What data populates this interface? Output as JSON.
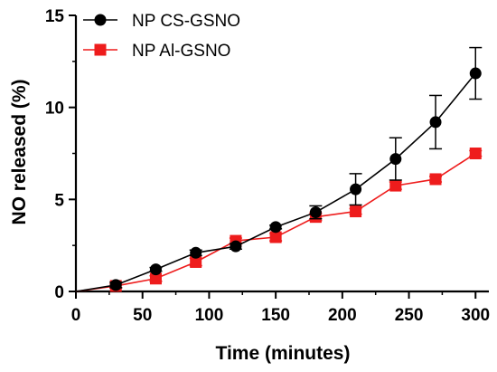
{
  "chart_data": {
    "type": "line",
    "title": "",
    "xlabel": "Time (minutes)",
    "ylabel": "NO released (%)",
    "xlim": [
      0,
      310
    ],
    "ylim": [
      0,
      15
    ],
    "x_ticks": [
      0,
      50,
      100,
      150,
      200,
      250,
      300
    ],
    "y_ticks": [
      0,
      5,
      10,
      15
    ],
    "grid": false,
    "legend_position": "top-left",
    "series": [
      {
        "name": "NP CS-GSNO",
        "marker": "circle",
        "color": "#000000",
        "x": [
          0,
          30,
          60,
          90,
          120,
          150,
          180,
          210,
          240,
          270,
          300
        ],
        "y": [
          0,
          0.35,
          1.2,
          2.1,
          2.45,
          3.5,
          4.3,
          5.55,
          7.2,
          9.2,
          11.85
        ],
        "error": [
          0,
          0.15,
          0.1,
          0.15,
          0.15,
          0.1,
          0.35,
          0.85,
          1.15,
          1.45,
          1.4
        ]
      },
      {
        "name": "NP Al-GSNO",
        "marker": "square",
        "color": "#ee1c1c",
        "x": [
          0,
          30,
          60,
          90,
          120,
          150,
          180,
          210,
          240,
          270,
          300
        ],
        "y": [
          0,
          0.3,
          0.7,
          1.6,
          2.75,
          2.95,
          4.05,
          4.35,
          5.75,
          6.1,
          7.5
        ],
        "error": [
          0,
          0.1,
          0.15,
          0.2,
          0.15,
          0.2,
          0.2,
          0.15,
          0.2,
          0.15,
          0.15
        ]
      }
    ]
  }
}
